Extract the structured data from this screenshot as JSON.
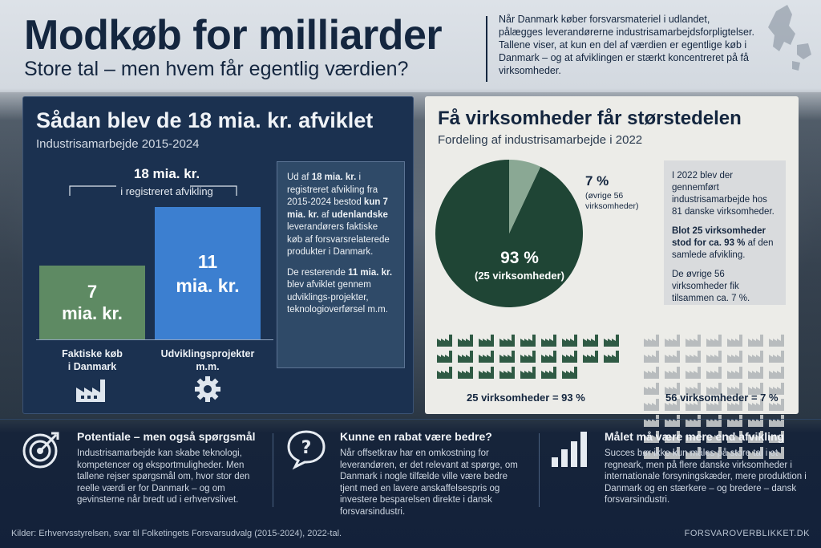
{
  "header": {
    "title": "Modkøb for milliarder",
    "subtitle": "Store tal – men hvem får egentlig værdien?",
    "intro": "Når Danmark køber forsvarsmateriel i udlandet, pålægges leverandørerne industrisamarbejdsforpligtelser. Tallene viser, at kun en del af værdien er egentlige køb i Danmark – og at afviklingen er stærkt koncentreret på få virksomheder."
  },
  "left_panel": {
    "title": "Sådan blev de 18 mia. kr. afviklet",
    "subtitle": "Industrisamarbejde 2015-2024",
    "total_value": "18 mia. kr.",
    "total_label": "i registreret afvikling",
    "bars": [
      {
        "value_text": "7",
        "unit": "mia. kr.",
        "label_1": "Faktiske køb",
        "label_2": "i Danmark",
        "value": 7,
        "color": "#5e8a63",
        "icon": "factory-icon"
      },
      {
        "value_text": "11",
        "unit": "mia. kr.",
        "label_1": "Udviklingsprojekter",
        "label_2": "m.m.",
        "value": 11,
        "color": "#3c7fd0",
        "icon": "gear-icon"
      }
    ],
    "note": {
      "p1_a": "Ud af ",
      "p1_b": "18 mia. kr.",
      "p1_c": " i registreret afvikling fra 2015-2024 bestod ",
      "p1_d": "kun 7 mia. kr.",
      "p1_e": " af ",
      "p1_f": "udenlandske",
      "p1_g": " leverandørers faktiske køb af forsvarsrelaterede produkter i Danmark.",
      "p2_a": "De resterende ",
      "p2_b": "11 mia. kr.",
      "p2_c": " blev afviklet gennem udviklings-projekter, teknologioverførsel m.m."
    }
  },
  "right_panel": {
    "title": "Få virksomheder får størstedelen",
    "subtitle": "Fordeling af industrisamarbejde i 2022",
    "pie": [
      {
        "value": 93,
        "label": "93 %",
        "sub": "(25 virksomheder)",
        "color": "#1f4535"
      },
      {
        "value": 7,
        "label": "7 %",
        "sub": "(øvrige 56 virksomheder)",
        "color": "#8aa894"
      }
    ],
    "note": {
      "p1": "I 2022 blev der gennemført industrisamarbejde hos 81 danske virksomheder.",
      "p2_bold": "Blot 25 virksomheder stod for ca. 93 %",
      "p2_rest": " af den samlede afvikling.",
      "p3": "De øvrige 56 virksomheder fik tilsammen ca. 7 %."
    },
    "grid_dark_count": 25,
    "grid_light_count": 56,
    "grid_dark_label": "25 virksomheder = 93 %",
    "grid_light_label": "56 virksomheder = 7 %",
    "grid_dark_color": "#2f5a44",
    "grid_light_color": "#b8bcbe"
  },
  "bottom": [
    {
      "icon": "target-icon",
      "title": "Potentiale – men også spørgsmål",
      "text": "Industrisamarbejde kan skabe teknologi, kompetencer og eksportmuligheder. Men tallene rejser spørgsmål om, hvor stor den reelle værdi er for Danmark – og om gevinsterne når bredt ud i erhvervslivet."
    },
    {
      "icon": "question-bubble-icon",
      "title": "Kunne en rabat være bedre?",
      "text": "Når offsetkrav har en omkostning for leverandøren, er det relevant at spørge, om Danmark i nogle tilfælde ville være bedre tjent med en lavere anskaffelsespris og investere besparelsen direkte i dansk forsvarsindustri."
    },
    {
      "icon": "bar-growth-icon",
      "title": "Målet må være mere end afvikling",
      "text": "Succes bør ikke kun måles på store tal i et regneark, men på flere danske virksomheder i internationale forsyningskæder, mere produktion i Danmark og en stærkere – og bredere – dansk forsvarsindustri."
    }
  ],
  "footer": {
    "sources": "Kilder: Erhvervsstyrelsen, svar til Folketingets Forsvarsudvalg (2015-2024), 2022-tal.",
    "site": "FORSVAROVERBLIKKET.DK"
  }
}
